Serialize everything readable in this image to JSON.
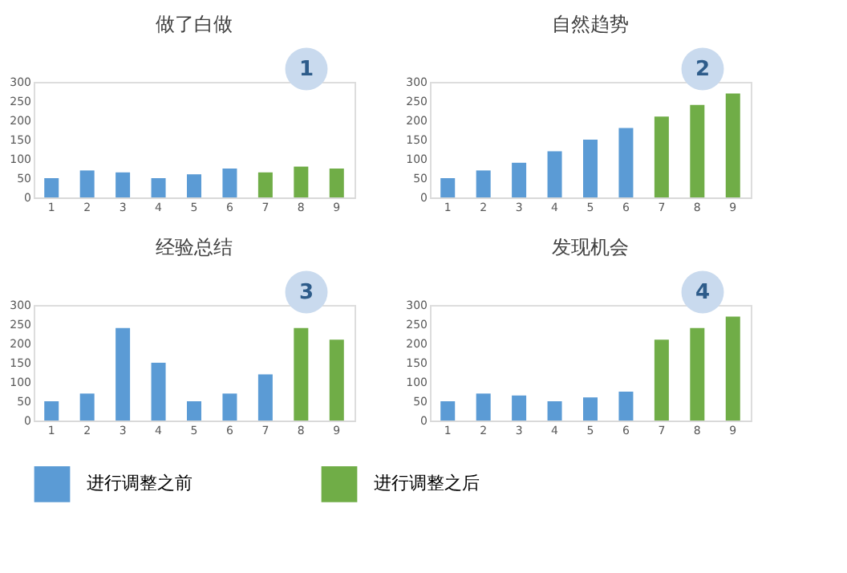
{
  "chart_data": [
    {
      "type": "bar",
      "title": "做了白做",
      "categories": [
        "1",
        "2",
        "3",
        "4",
        "5",
        "6",
        "7",
        "8",
        "9"
      ],
      "series": [
        {
          "name": "进行调整之前",
          "color": "#5b9bd5",
          "values": [
            50,
            70,
            65,
            50,
            60,
            75,
            null,
            null,
            null
          ]
        },
        {
          "name": "进行调整之后",
          "color": "#70ad47",
          "values": [
            null,
            null,
            null,
            null,
            null,
            null,
            65,
            80,
            75
          ]
        }
      ],
      "ylim": [
        0,
        300
      ],
      "yticks": [
        0,
        50,
        100,
        150,
        200,
        250,
        300
      ],
      "grid": false,
      "legend": "bottom",
      "annotations": [
        "1"
      ]
    },
    {
      "type": "bar",
      "title": "自然趋势",
      "categories": [
        "1",
        "2",
        "3",
        "4",
        "5",
        "6",
        "7",
        "8",
        "9"
      ],
      "series": [
        {
          "name": "进行调整之前",
          "color": "#5b9bd5",
          "values": [
            50,
            70,
            90,
            120,
            150,
            180,
            null,
            null,
            null
          ]
        },
        {
          "name": "进行调整之后",
          "color": "#70ad47",
          "values": [
            null,
            null,
            null,
            null,
            null,
            null,
            210,
            240,
            270
          ]
        }
      ],
      "ylim": [
        0,
        300
      ],
      "yticks": [
        0,
        50,
        100,
        150,
        200,
        250,
        300
      ],
      "grid": false,
      "legend": "bottom",
      "annotations": [
        "2"
      ]
    },
    {
      "type": "bar",
      "title": "经验总结",
      "categories": [
        "1",
        "2",
        "3",
        "4",
        "5",
        "6",
        "7",
        "8",
        "9"
      ],
      "series": [
        {
          "name": "进行调整之前",
          "color": "#5b9bd5",
          "values": [
            50,
            70,
            240,
            150,
            50,
            70,
            120,
            null,
            null
          ]
        },
        {
          "name": "进行调整之后",
          "color": "#70ad47",
          "values": [
            null,
            null,
            null,
            null,
            null,
            null,
            null,
            240,
            210
          ]
        }
      ],
      "ylim": [
        0,
        300
      ],
      "yticks": [
        0,
        50,
        100,
        150,
        200,
        250,
        300
      ],
      "grid": false,
      "legend": "bottom",
      "annotations": [
        "3"
      ]
    },
    {
      "type": "bar",
      "title": "发现机会",
      "categories": [
        "1",
        "2",
        "3",
        "4",
        "5",
        "6",
        "7",
        "8",
        "9"
      ],
      "series": [
        {
          "name": "进行调整之前",
          "color": "#5b9bd5",
          "values": [
            50,
            70,
            65,
            50,
            60,
            75,
            null,
            null,
            null
          ]
        },
        {
          "name": "进行调整之后",
          "color": "#70ad47",
          "values": [
            null,
            null,
            null,
            null,
            null,
            null,
            210,
            240,
            270
          ]
        }
      ],
      "ylim": [
        0,
        300
      ],
      "yticks": [
        0,
        50,
        100,
        150,
        200,
        250,
        300
      ],
      "grid": false,
      "legend": "bottom",
      "annotations": [
        "4"
      ]
    }
  ]
}
